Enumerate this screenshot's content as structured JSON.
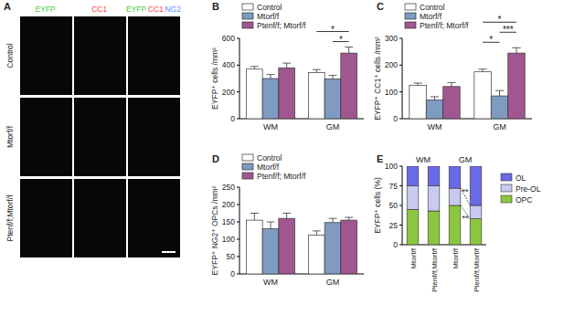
{
  "panel_a": {
    "title": "A",
    "columns": [
      [
        "EYFP"
      ],
      [
        "CC1"
      ],
      [
        "EYFP",
        "CC1",
        "NG2"
      ]
    ],
    "rows": [
      "Control",
      "Mtorf/f",
      "Ptenf/f;Mtorf/f"
    ]
  },
  "chart_data": [
    {
      "title": "B",
      "type": "bar",
      "y_label": "EYFP⁺ cells /mm²",
      "categories": [
        "WM",
        "GM"
      ],
      "series": [
        {
          "name": "Control",
          "color": "#ffffff",
          "values": [
            370,
            345
          ],
          "errors": [
            20,
            22
          ]
        },
        {
          "name": "Mtorf/f",
          "color": "#7f9bc2",
          "values": [
            300,
            298
          ],
          "errors": [
            30,
            25
          ]
        },
        {
          "name": "Ptenf/f; Mtorf/f",
          "color": "#a0578f",
          "values": [
            380,
            490
          ],
          "errors": [
            35,
            45
          ]
        }
      ],
      "ylim": [
        0,
        600
      ],
      "yticks": [
        0,
        200,
        400,
        600
      ],
      "legend": "top",
      "annotations": [
        {
          "category": "GM",
          "between": [
            "Mtorf/f",
            "Ptenf/f; Mtorf/f"
          ],
          "text": "*"
        },
        {
          "category": "GM",
          "between": [
            "Control",
            "Ptenf/f; Mtorf/f"
          ],
          "text": "*"
        }
      ]
    },
    {
      "title": "C",
      "type": "bar",
      "y_label": "EYFP⁺ CC1⁺ cells /mm²",
      "categories": [
        "WM",
        "GM"
      ],
      "series": [
        {
          "name": "Control",
          "color": "#ffffff",
          "values": [
            125,
            175
          ],
          "errors": [
            8,
            10
          ]
        },
        {
          "name": "Mtorf/f",
          "color": "#7f9bc2",
          "values": [
            70,
            85
          ],
          "errors": [
            12,
            20
          ]
        },
        {
          "name": "Ptenf/f; Mtorf/f",
          "color": "#a0578f",
          "values": [
            120,
            245
          ],
          "errors": [
            15,
            20
          ]
        }
      ],
      "ylim": [
        0,
        300
      ],
      "yticks": [
        0,
        100,
        200,
        300
      ],
      "legend": "top",
      "annotations": [
        {
          "category": "GM",
          "between": [
            "Control",
            "Mtorf/f"
          ],
          "text": "*"
        },
        {
          "category": "GM",
          "between": [
            "Mtorf/f",
            "Ptenf/f; Mtorf/f"
          ],
          "text": "***"
        },
        {
          "category": "GM",
          "between": [
            "Control",
            "Ptenf/f; Mtorf/f"
          ],
          "text": "*"
        }
      ]
    },
    {
      "title": "D",
      "type": "bar",
      "y_label": "EYFP⁺ NG2⁺ OPCs /mm²",
      "categories": [
        "WM",
        "GM"
      ],
      "series": [
        {
          "name": "Control",
          "color": "#ffffff",
          "values": [
            155,
            112
          ],
          "errors": [
            20,
            12
          ]
        },
        {
          "name": "Mtorf/f",
          "color": "#7f9bc2",
          "values": [
            130,
            148
          ],
          "errors": [
            20,
            12
          ]
        },
        {
          "name": "Ptenf/f; Mtorf/f",
          "color": "#a0578f",
          "values": [
            160,
            155
          ],
          "errors": [
            15,
            8
          ]
        }
      ],
      "ylim": [
        0,
        250
      ],
      "yticks": [
        0,
        50,
        100,
        150,
        200,
        250
      ],
      "legend": "top",
      "annotations": []
    },
    {
      "title": "E",
      "type": "bar",
      "stacked": true,
      "y_label": "EYFP⁺ cells (%)",
      "groups": [
        "WM",
        "GM"
      ],
      "categories": [
        "Mtorf/f",
        "Ptenf/f;Mtorf/f",
        "Mtorf/f",
        "Ptenf/f;Mtorf/f"
      ],
      "series": [
        {
          "name": "OPC",
          "color": "#8cc63f",
          "values": [
            45,
            43,
            50,
            33
          ],
          "errors": [
            5,
            5,
            5,
            3
          ]
        },
        {
          "name": "Pre-OL",
          "color": "#c9c9f2",
          "values": [
            30,
            32,
            22,
            17
          ]
        },
        {
          "name": "OL",
          "color": "#6a6ae6",
          "values": [
            25,
            25,
            28,
            50
          ]
        }
      ],
      "ylim": [
        0,
        100
      ],
      "yticks": [
        0,
        25,
        50,
        75,
        100
      ],
      "legend": "right",
      "annotations": [
        {
          "group": "GM",
          "series": "OPC",
          "text": "**"
        },
        {
          "group": "GM",
          "series": "Pre-OL",
          "text": "**"
        }
      ]
    }
  ]
}
